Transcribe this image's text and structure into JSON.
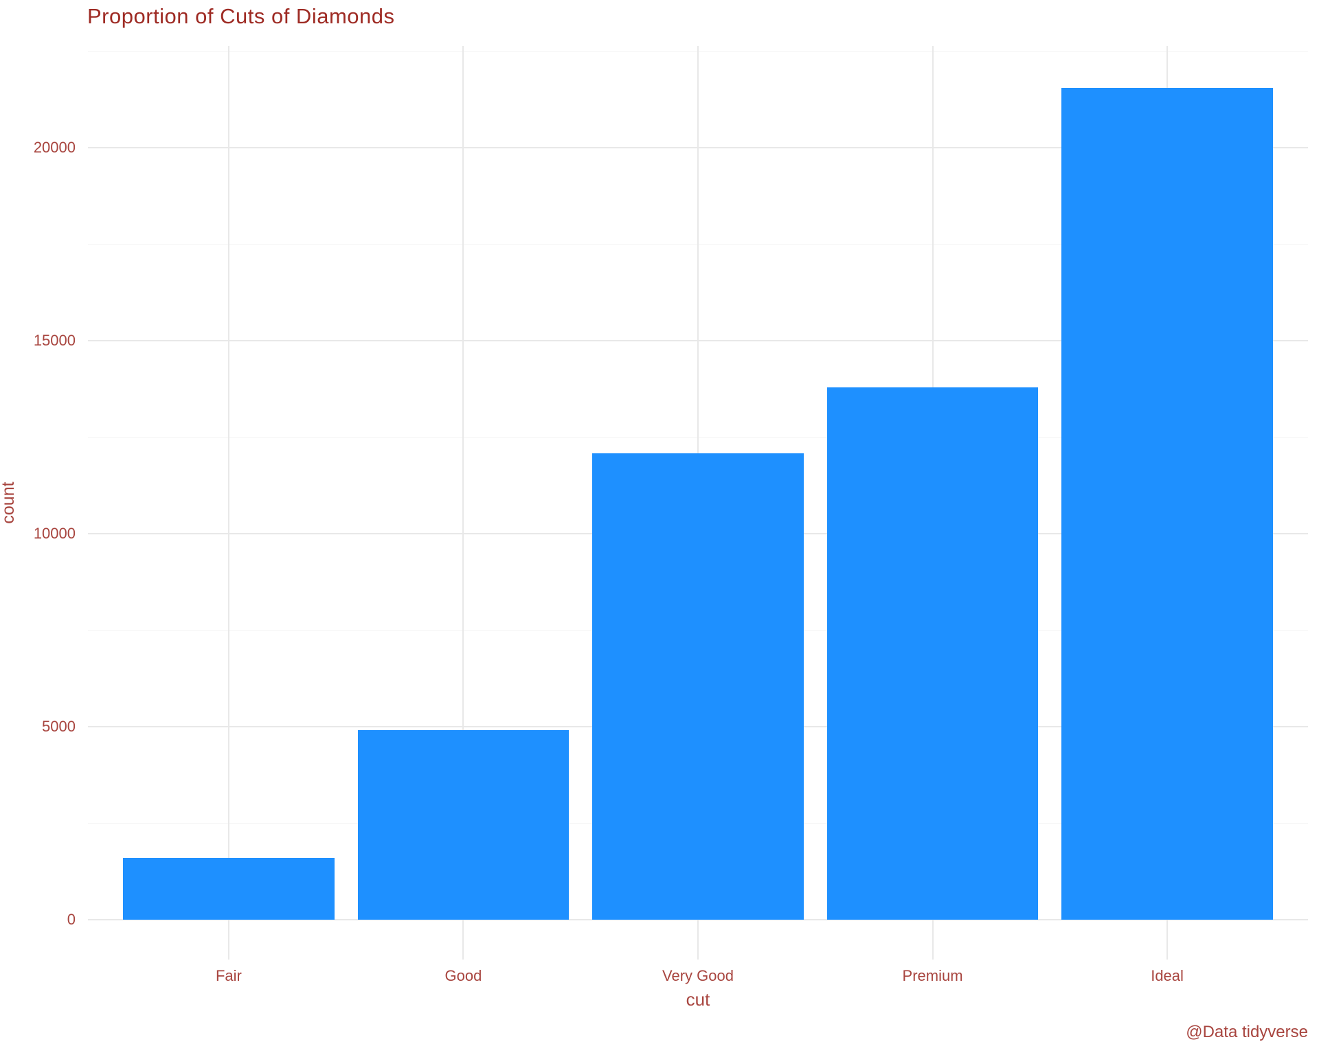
{
  "title": "Proportion of Cuts of Diamonds",
  "caption": "@Data tidyverse",
  "colors": {
    "background": "#FFFFFF",
    "bar": "#1E90FF",
    "title_text": "#9E2B24",
    "axis_text": "#A8453F",
    "grid_major": "#E8E8E8",
    "grid_minor": "#F3F3F3"
  },
  "chart_data": {
    "type": "bar",
    "title": "Proportion of Cuts of Diamonds",
    "xlabel": "cut",
    "ylabel": "count",
    "categories": [
      "Fair",
      "Good",
      "Very Good",
      "Premium",
      "Ideal"
    ],
    "values": [
      1610,
      4906,
      12082,
      13791,
      21551
    ],
    "ylim": [
      0,
      22500
    ],
    "yticks": [
      0,
      5000,
      10000,
      15000,
      20000
    ],
    "yticks_minor": [
      2500,
      7500,
      12500,
      17500,
      22500
    ],
    "grid": "on",
    "legend": "none",
    "bar_color": "#1E90FF",
    "source_caption": "@Data tidyverse"
  }
}
